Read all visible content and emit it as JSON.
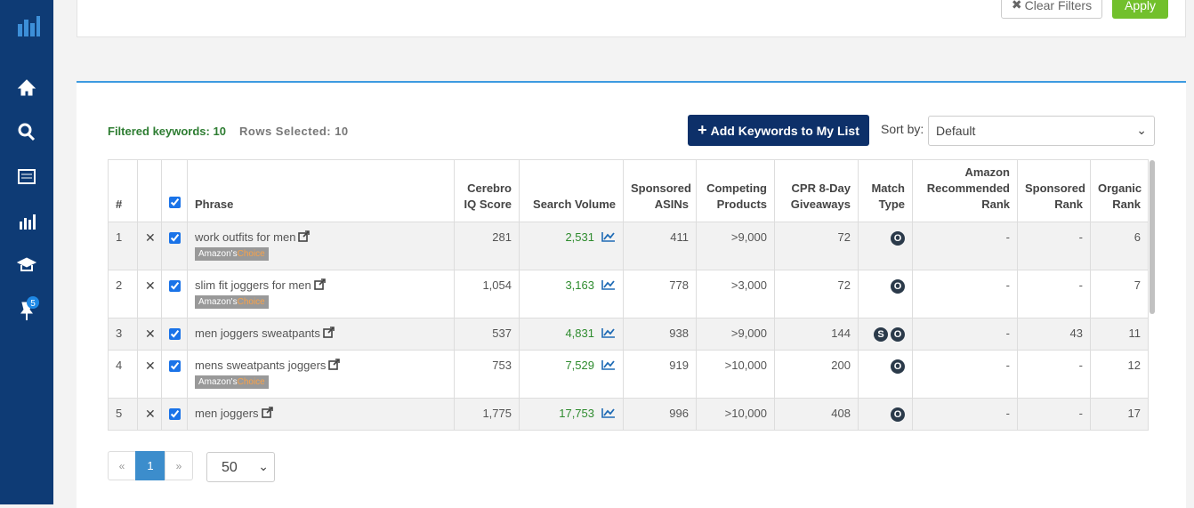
{
  "sidebar": {
    "pin_badge": "5"
  },
  "filters": {
    "clear_button": "Clear Filters",
    "apply_button": "Apply"
  },
  "toolbar": {
    "filtered_label": "Filtered keywords: 10",
    "selected_label": "Rows Selected: 10",
    "add_button": "Add Keywords to My List",
    "sort_label": "Sort by:",
    "sort_value": "Default"
  },
  "table": {
    "headers": [
      "#",
      "Phrase",
      "Cerebro\nIQ Score",
      "Search Volume",
      "Sponsored\nASINs",
      "Competing\nProducts",
      "CPR 8-Day\nGiveaways",
      "Match\nType",
      "Amazon\nRecommended\nRank",
      "Sponsored\nRank",
      "Organic\nRank"
    ],
    "rows": [
      {
        "num": "1",
        "phrase": "work outfits for men",
        "badge": [
          "Amazon's",
          "Choice"
        ],
        "cerebro": "281",
        "volume": "2,531",
        "asins": "411",
        "competing": ">9,000",
        "cpr": "72",
        "match": [
          "O"
        ],
        "amazon_rank": "-",
        "sponsored_rank": "-",
        "organic_rank": "6"
      },
      {
        "num": "2",
        "phrase": "slim fit joggers for men",
        "badge": [
          "Amazon's",
          "Choice"
        ],
        "cerebro": "1,054",
        "volume": "3,163",
        "asins": "778",
        "competing": ">3,000",
        "cpr": "72",
        "match": [
          "O"
        ],
        "amazon_rank": "-",
        "sponsored_rank": "-",
        "organic_rank": "7"
      },
      {
        "num": "3",
        "phrase": "men joggers sweatpants",
        "cerebro": "537",
        "volume": "4,831",
        "asins": "938",
        "competing": ">9,000",
        "cpr": "144",
        "match": [
          "S",
          "O"
        ],
        "amazon_rank": "-",
        "sponsored_rank": "43",
        "organic_rank": "11"
      },
      {
        "num": "4",
        "phrase": "mens sweatpants joggers",
        "badge": [
          "Amazon's",
          "Choice"
        ],
        "cerebro": "753",
        "volume": "7,529",
        "asins": "919",
        "competing": ">10,000",
        "cpr": "200",
        "match": [
          "O"
        ],
        "amazon_rank": "-",
        "sponsored_rank": "-",
        "organic_rank": "12"
      },
      {
        "num": "5",
        "phrase": "men joggers",
        "cerebro": "1,775",
        "volume": "17,753",
        "asins": "996",
        "competing": ">10,000",
        "cpr": "408",
        "match": [
          "O"
        ],
        "amazon_rank": "-",
        "sponsored_rank": "-",
        "organic_rank": "17"
      }
    ]
  },
  "pagination": {
    "prev": "«",
    "current": "1",
    "next": "»",
    "page_size": "50"
  }
}
